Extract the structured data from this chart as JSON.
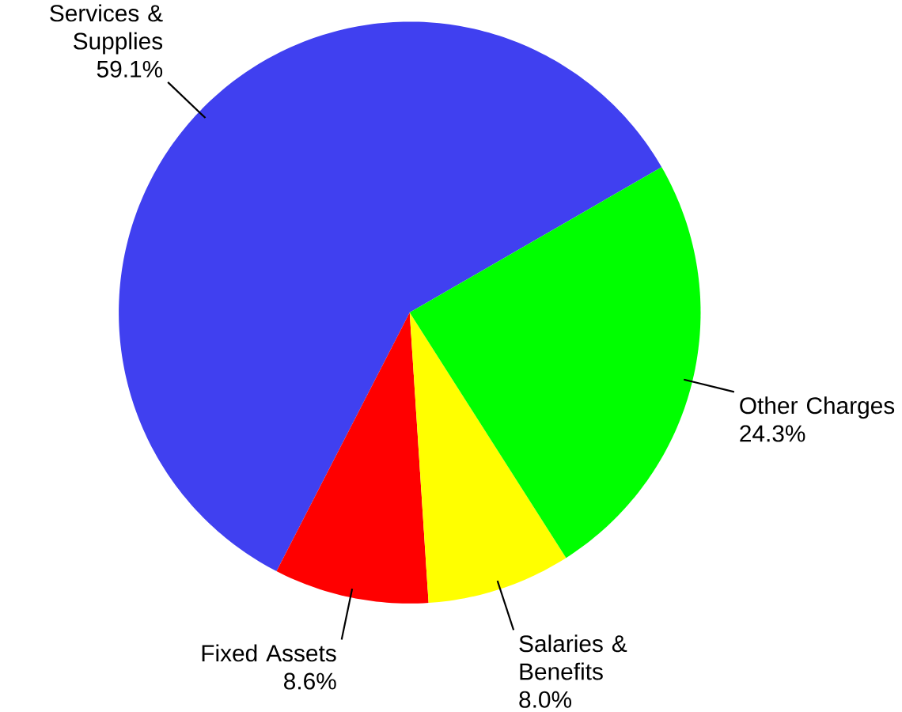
{
  "chart_data": {
    "type": "pie",
    "categories": [
      "Services & Supplies",
      "Fixed Assets",
      "Salaries & Benefits",
      "Other Charges"
    ],
    "values": [
      59.1,
      8.6,
      8.0,
      24.3
    ],
    "colors": [
      "#4040f0",
      "#ff0000",
      "#ffff00",
      "#00ff00"
    ],
    "value_labels": [
      "59.1%",
      "8.6%",
      "8.0%",
      "24.3%"
    ]
  }
}
